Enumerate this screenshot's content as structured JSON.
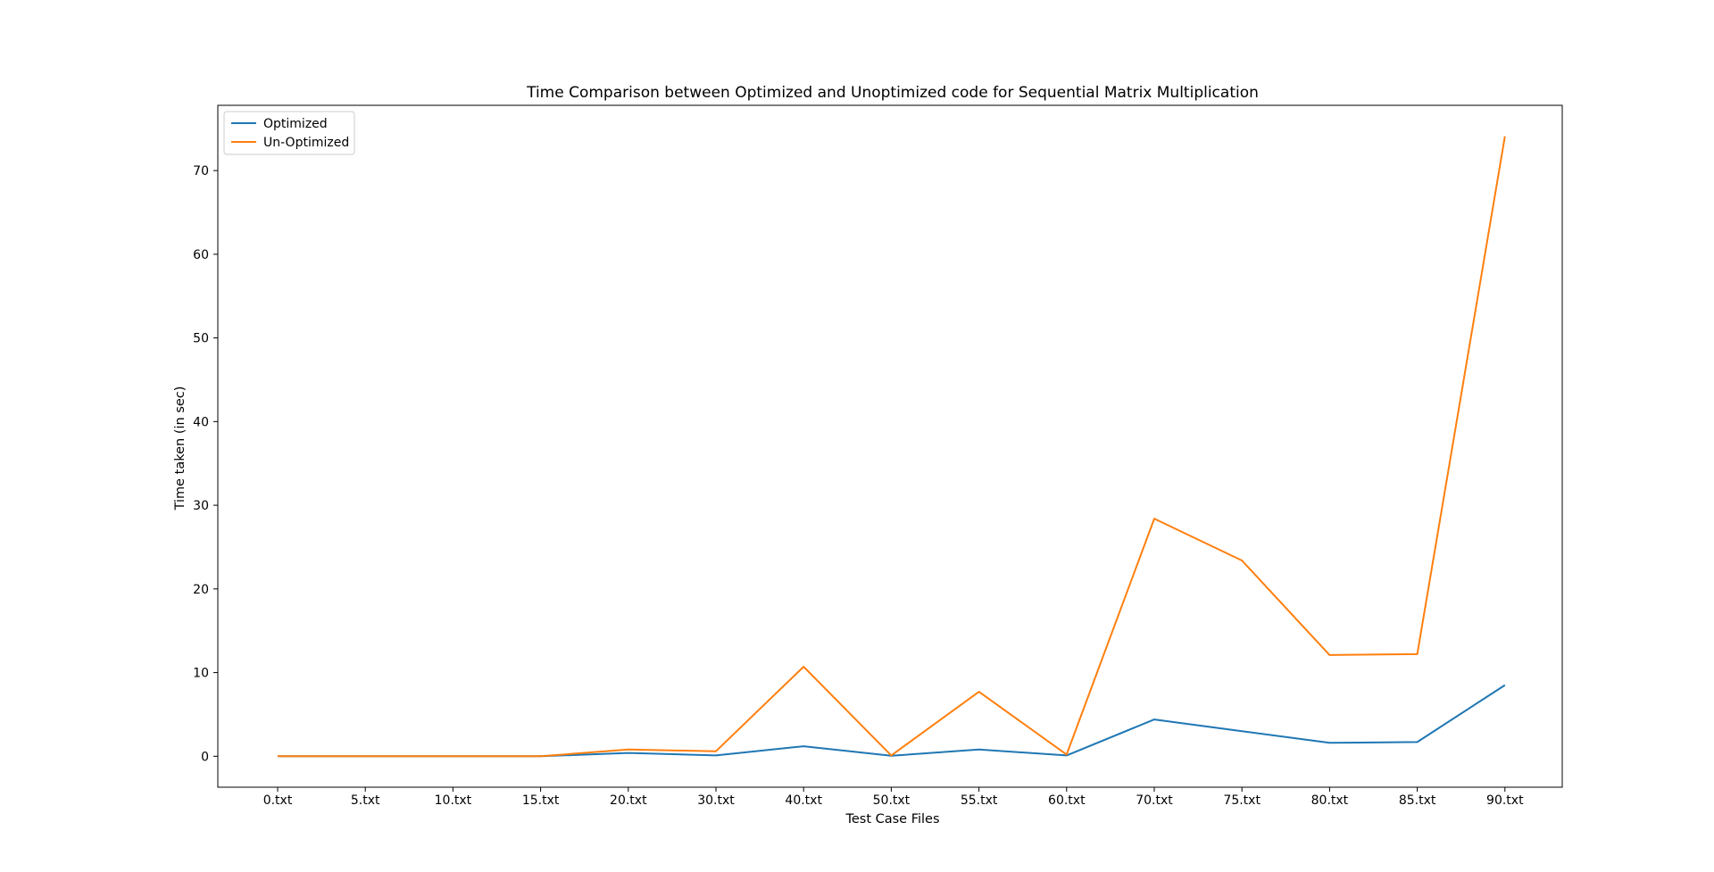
{
  "chart_data": {
    "type": "line",
    "title": "Time Comparison between Optimized and Unoptimized code for Sequential Matrix Multiplication",
    "xlabel": "Test Case Files",
    "ylabel": "Time taken (in sec)",
    "categories": [
      "0.txt",
      "5.txt",
      "10.txt",
      "15.txt",
      "20.txt",
      "30.txt",
      "40.txt",
      "50.txt",
      "55.txt",
      "60.txt",
      "70.txt",
      "75.txt",
      "80.txt",
      "85.txt",
      "90.txt"
    ],
    "ylim": [
      -3.7,
      77.8
    ],
    "yticks": [
      0,
      10,
      20,
      30,
      40,
      50,
      60,
      70
    ],
    "grid": false,
    "legend_position": "top-left",
    "series": [
      {
        "name": "Optimized",
        "color": "#1f77b4",
        "values": [
          0.0,
          0.0,
          0.0,
          0.0,
          0.4,
          0.1,
          1.2,
          0.05,
          0.8,
          0.1,
          4.4,
          3.0,
          1.6,
          1.7,
          8.5
        ]
      },
      {
        "name": "Un-Optimized",
        "color": "#ff7f0e",
        "values": [
          0.0,
          0.0,
          0.0,
          0.0,
          0.8,
          0.6,
          10.7,
          0.1,
          7.7,
          0.2,
          28.4,
          23.4,
          12.1,
          12.2,
          74.1
        ]
      }
    ]
  }
}
